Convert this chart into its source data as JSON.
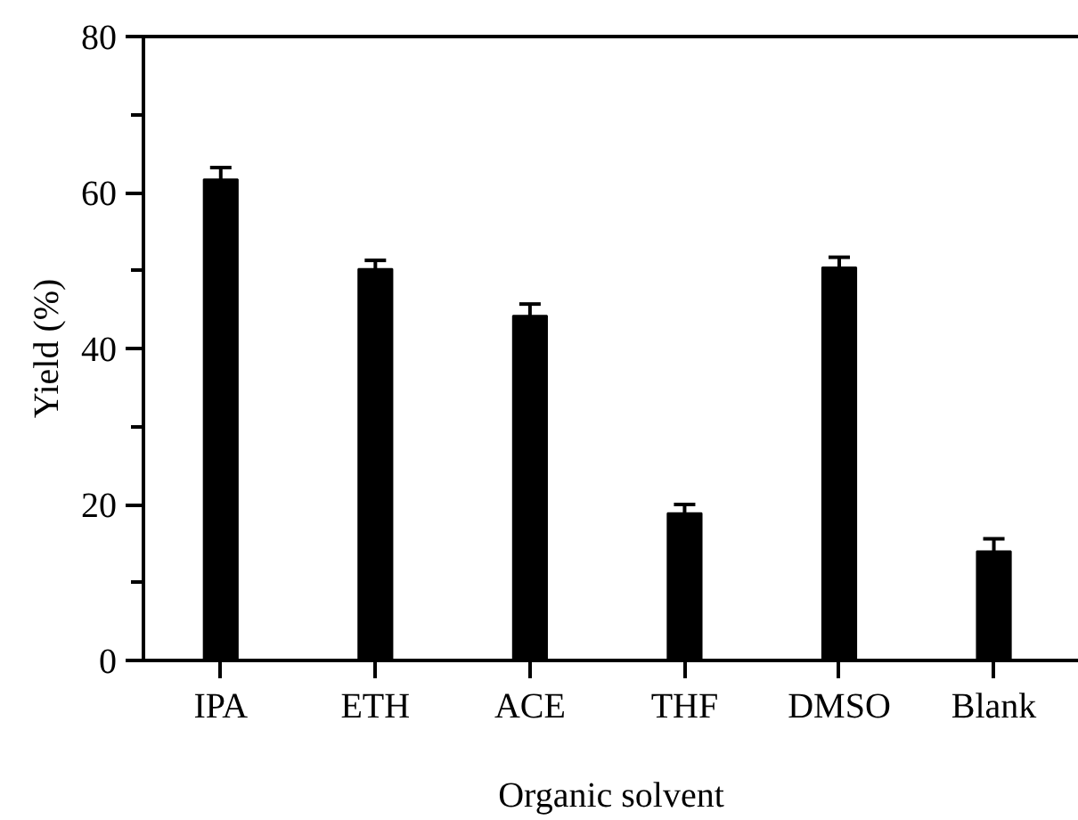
{
  "chart_data": {
    "type": "bar",
    "xlabel": "Organic solvent",
    "ylabel": "Yield (%)",
    "categories": [
      "IPA",
      "ETH",
      "ACE",
      "THF",
      "DMSO",
      "Blank"
    ],
    "values": [
      61.7,
      50.2,
      44.2,
      18.9,
      50.4,
      14.0
    ],
    "errors": [
      1.5,
      1.1,
      1.5,
      1.1,
      1.3,
      1.6
    ],
    "color": "#000000",
    "ylim": [
      0,
      80
    ],
    "yticks": [
      0,
      20,
      40,
      60,
      80
    ],
    "grid": false
  }
}
